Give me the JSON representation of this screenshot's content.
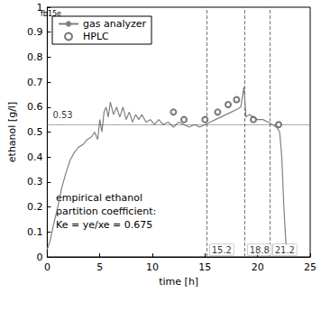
{
  "chart_data": {
    "type": "line",
    "title": "fb15e",
    "x_label": "time [h]",
    "y_label": "ethanol [g/l]",
    "xlim": [
      0,
      25
    ],
    "xticks": [
      0,
      5,
      10,
      15,
      20,
      25
    ],
    "ylim": [
      0,
      1
    ],
    "yticks": [
      0,
      0.1,
      0.2,
      0.3,
      0.4,
      0.5,
      0.6,
      0.7,
      0.8,
      0.9,
      1
    ],
    "grid": false,
    "legend": "upper left",
    "series": [
      {
        "name": "gas analyzer",
        "type": "line",
        "color": "#808080",
        "line_style": "solid",
        "x": [
          0,
          0.3,
          0.6,
          1,
          1.4,
          1.8,
          2.2,
          2.6,
          3,
          3.4,
          3.8,
          4.2,
          4.5,
          4.8,
          5.0,
          5.2,
          5.4,
          5.6,
          5.8,
          6.0,
          6.3,
          6.6,
          6.9,
          7.2,
          7.5,
          7.8,
          8.1,
          8.4,
          8.7,
          9.0,
          9.4,
          9.8,
          10.2,
          10.6,
          11,
          11.5,
          12,
          12.5,
          13,
          13.5,
          14,
          14.5,
          15,
          15.5,
          16,
          16.5,
          17,
          17.5,
          18,
          18.4,
          18.7,
          18.9,
          19.2,
          19.6,
          20,
          20.5,
          21,
          21.4,
          21.8,
          22.1,
          22.3,
          22.5,
          22.7
        ],
        "values": [
          0.03,
          0.07,
          0.13,
          0.2,
          0.28,
          0.34,
          0.39,
          0.42,
          0.44,
          0.45,
          0.47,
          0.48,
          0.5,
          0.47,
          0.55,
          0.5,
          0.58,
          0.6,
          0.56,
          0.62,
          0.57,
          0.6,
          0.56,
          0.6,
          0.55,
          0.58,
          0.54,
          0.57,
          0.55,
          0.57,
          0.54,
          0.55,
          0.53,
          0.55,
          0.53,
          0.54,
          0.52,
          0.54,
          0.53,
          0.52,
          0.53,
          0.52,
          0.53,
          0.54,
          0.55,
          0.56,
          0.57,
          0.58,
          0.59,
          0.6,
          0.68,
          0.56,
          0.57,
          0.56,
          0.55,
          0.55,
          0.54,
          0.53,
          0.52,
          0.5,
          0.4,
          0.2,
          0.05
        ]
      },
      {
        "name": "HPLC",
        "type": "scatter",
        "marker": "circle",
        "color": "#555555",
        "x": [
          12,
          13,
          15,
          16.2,
          17.2,
          18,
          19.6,
          22
        ],
        "values": [
          0.58,
          0.55,
          0.55,
          0.58,
          0.61,
          0.63,
          0.55,
          0.53
        ]
      }
    ],
    "hlines": [
      {
        "value": 0.53,
        "label": "0.53",
        "line_style": "dotted"
      }
    ],
    "vlines": [
      {
        "value": 15.2,
        "label": "15.2",
        "line_style": "dashed"
      },
      {
        "value": 18.8,
        "label": "18.8",
        "line_style": "dashed"
      },
      {
        "value": 21.2,
        "label": "21.2",
        "line_style": "dashed"
      }
    ],
    "annotations": [
      "empirical ethanol",
      "partition coefficient:",
      "Ke = ye/xe = 0.675"
    ]
  }
}
